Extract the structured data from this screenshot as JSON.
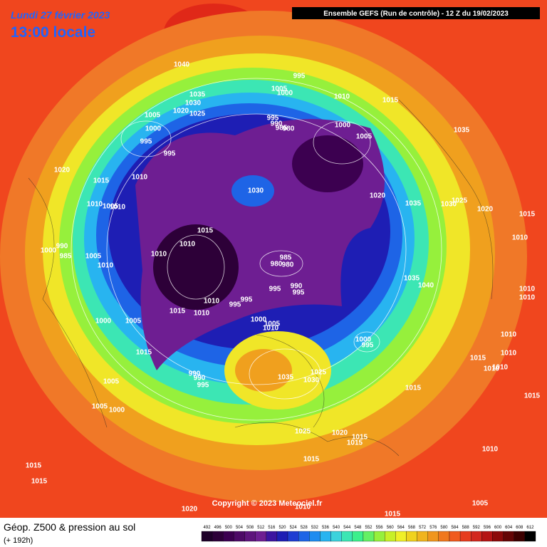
{
  "header": {
    "title_date": "Lundi 27 février 2023",
    "local_time": "13:00 locale",
    "run_info": "Ensemble GEFS  (Run de contrôle)  -  12 Z du 19/02/2023"
  },
  "footer": {
    "caption": "Géop. Z500 & pression au sol",
    "lead_time": "(+ 192h)",
    "copyright": "Copyright © 2023 Meteociel.fr"
  },
  "colorbar": {
    "labels": [
      492,
      496,
      500,
      504,
      508,
      512,
      516,
      520,
      524,
      528,
      532,
      536,
      540,
      544,
      548,
      552,
      556,
      560,
      564,
      568,
      572,
      576,
      580,
      584,
      588,
      592,
      596,
      600,
      604,
      608,
      612
    ],
    "colors": [
      "#1e0028",
      "#2d0038",
      "#3c0050",
      "#4d0a66",
      "#5e147c",
      "#6e1e92",
      "#3c14a0",
      "#1e1eb4",
      "#1e3cd2",
      "#1e64e6",
      "#1e8cf0",
      "#28b4f0",
      "#3cd2dc",
      "#3ce6b4",
      "#3cf08c",
      "#64f064",
      "#96f03c",
      "#c8f028",
      "#f0f028",
      "#f0d21e",
      "#f0b41e",
      "#f0961e",
      "#f0781e",
      "#f05a1e",
      "#e63c1e",
      "#d2281e",
      "#b41414",
      "#8c0a0a",
      "#640505",
      "#3c0000",
      "#000000"
    ]
  },
  "isobar_labels": [
    1040,
    995,
    1005,
    1000,
    1010,
    1015,
    1035,
    1030,
    1020,
    1025,
    1005,
    995,
    990,
    985,
    980,
    1000,
    1005,
    1035,
    1000,
    995,
    995,
    1020,
    1010,
    1015,
    1030,
    1020,
    1035,
    1030,
    1025,
    1020,
    1015,
    1010,
    1010,
    1005,
    1010,
    1015,
    1010,
    990,
    1000,
    985,
    1010,
    1005,
    985,
    980,
    980,
    1010,
    1035,
    1040,
    995,
    990,
    995,
    1010,
    1010,
    1010,
    995,
    995,
    1015,
    1010,
    1000,
    1005,
    1010,
    1000,
    1005,
    1000,
    995,
    1010,
    1015,
    1010,
    1015,
    1010,
    1010,
    990,
    990,
    995,
    1035,
    1025,
    1030,
    1005,
    1015,
    1015,
    1005,
    1000,
    1025,
    1020,
    1015,
    1015,
    1010,
    1015,
    1015,
    1015,
    1005,
    1020,
    1015,
    1010
  ]
}
